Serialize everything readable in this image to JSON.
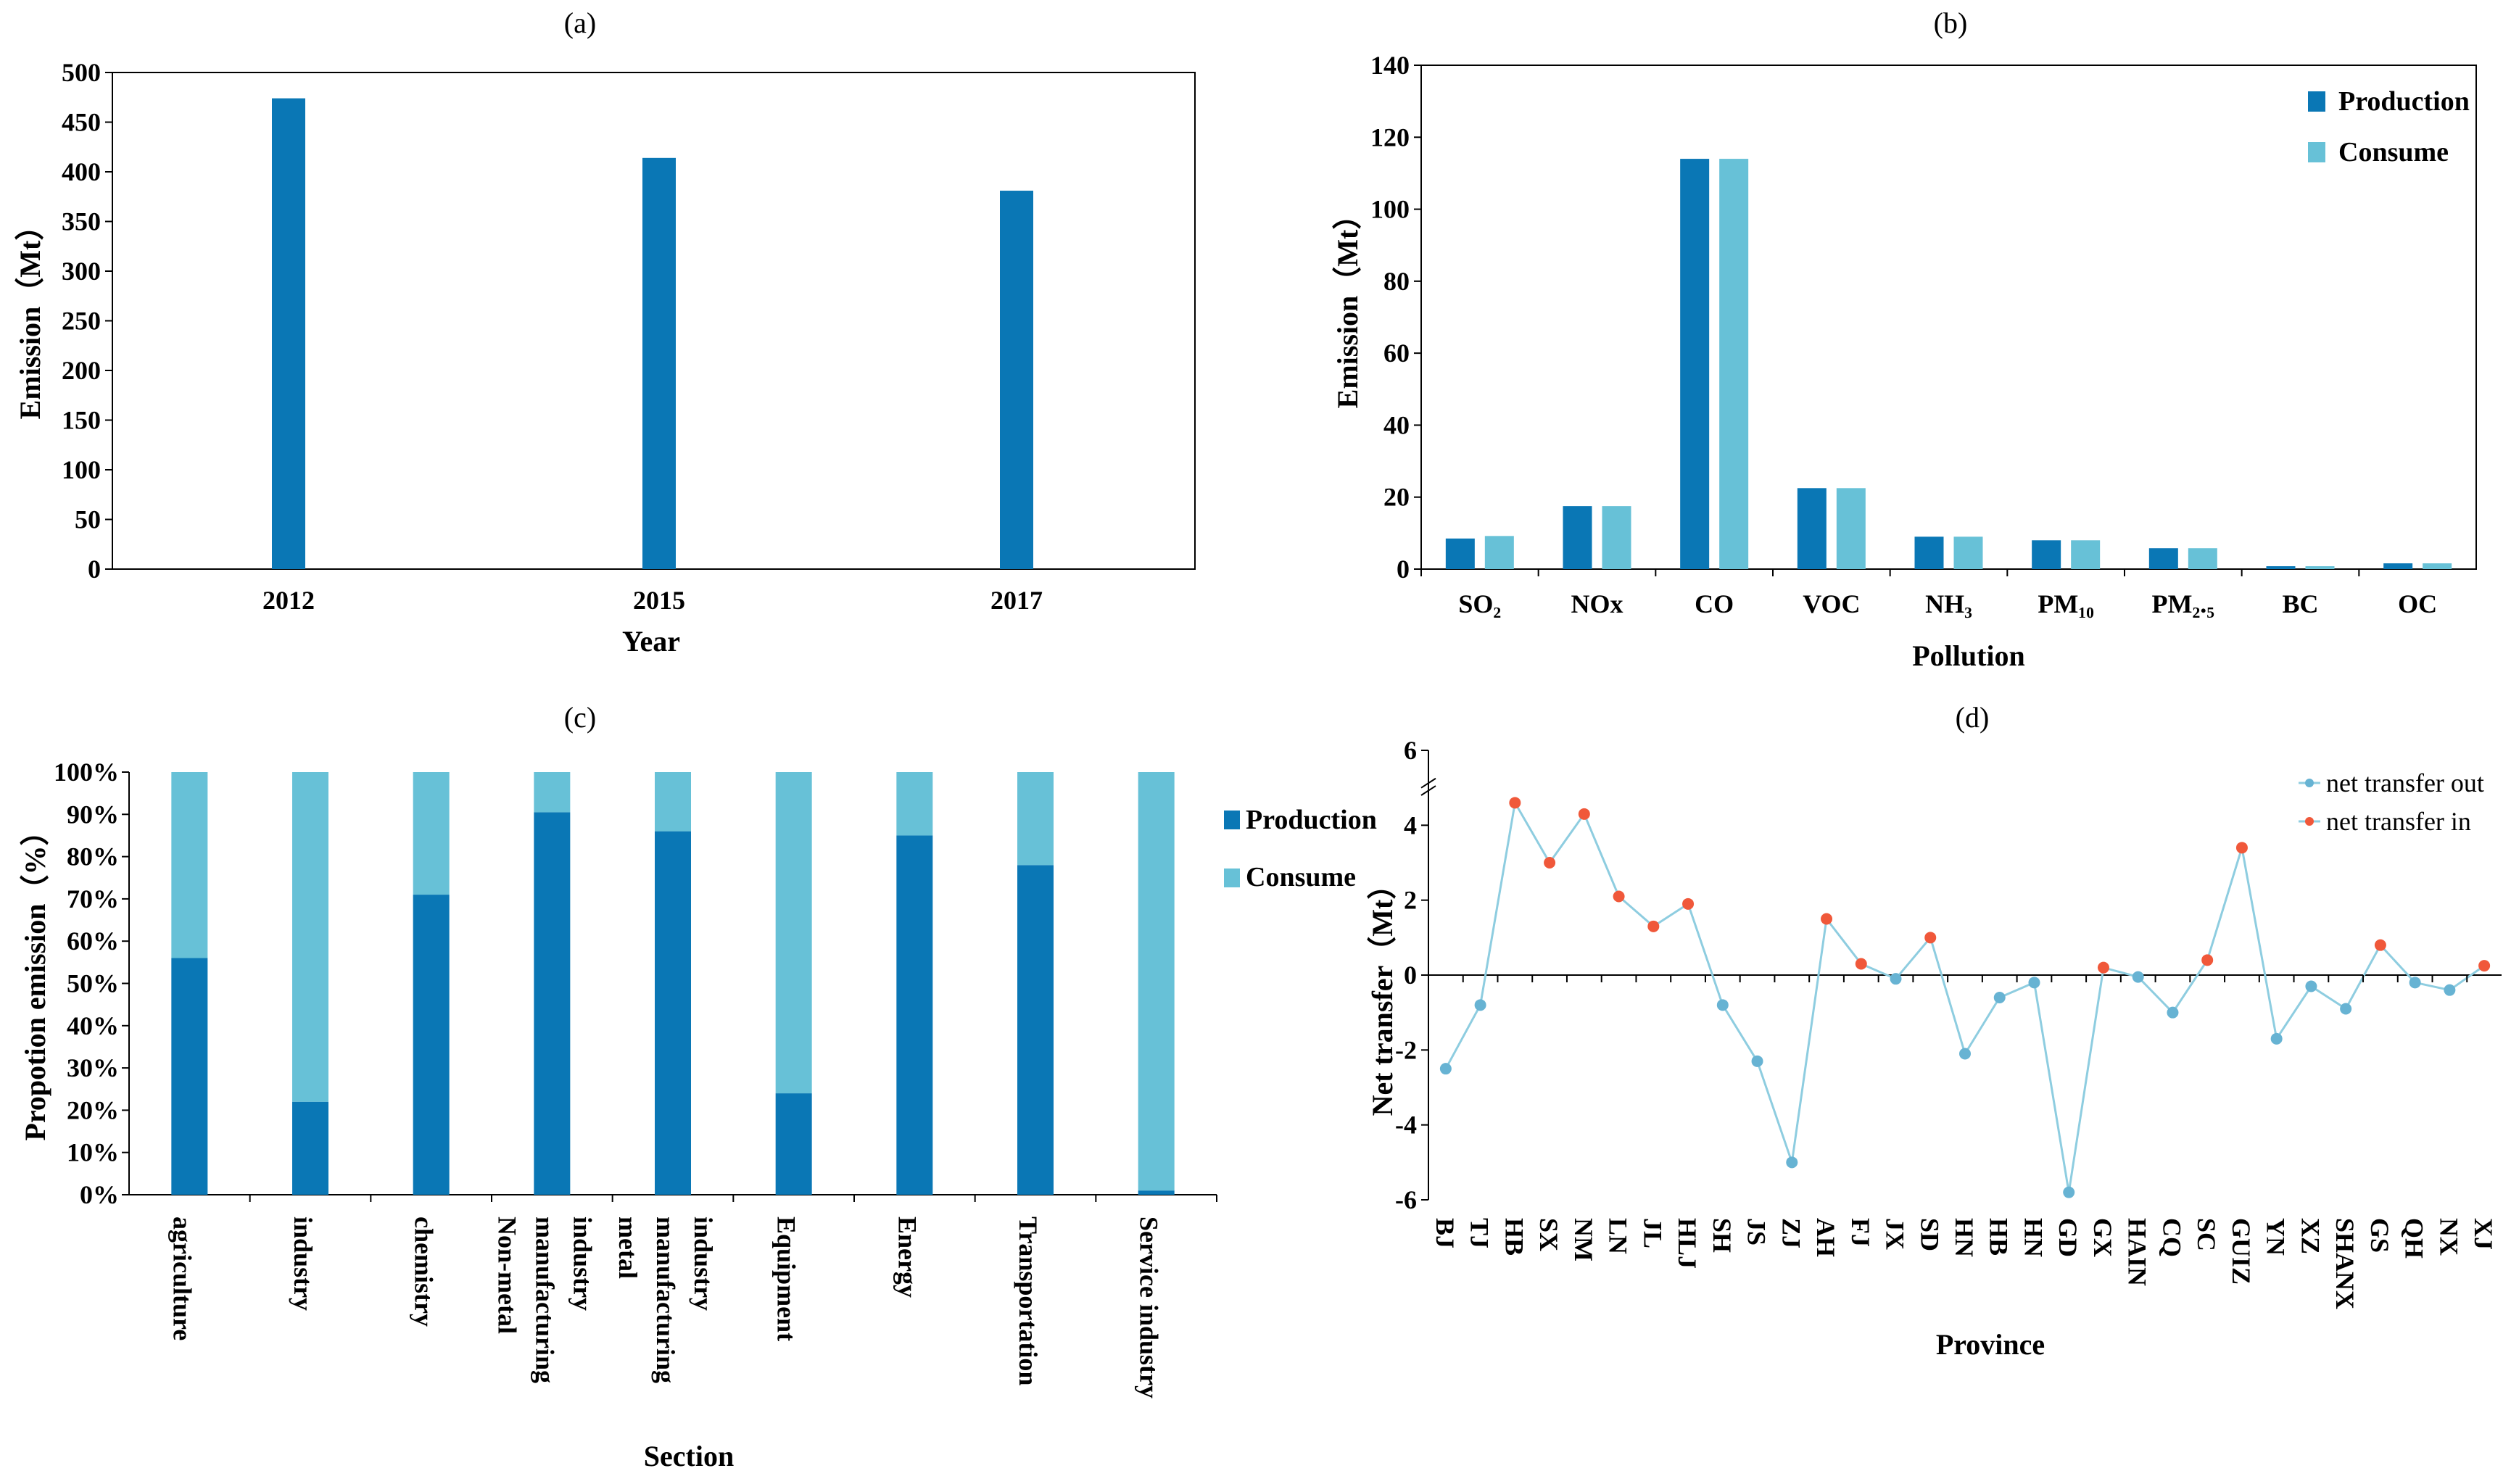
{
  "colors": {
    "production": "#0a77b5",
    "consume": "#67c1d7",
    "net_out": "#67b3d3",
    "net_in": "#f0583a",
    "line": "#8ecde0"
  },
  "chart_data": [
    {
      "id": "a",
      "type": "bar",
      "title": "(a)",
      "categories": [
        "2012",
        "2015",
        "2017"
      ],
      "values": [
        474,
        414,
        381
      ],
      "xlabel": "Year",
      "ylabel": "Emission（Mt）",
      "ylim": [
        0,
        500
      ],
      "yticks": [
        "0",
        "50",
        "100",
        "150",
        "200",
        "250",
        "300",
        "350",
        "400",
        "450",
        "500"
      ]
    },
    {
      "id": "b",
      "type": "bar",
      "title": "(b)",
      "categories": [
        "SO₂",
        "NOx",
        "CO",
        "VOC",
        "NH₃",
        "PM₁₀",
        "PM₂.₅",
        "BC",
        "OC"
      ],
      "series": [
        {
          "name": "Production",
          "values": [
            8.5,
            17.5,
            114,
            22.5,
            9,
            8,
            5.8,
            0.8,
            1.6
          ]
        },
        {
          "name": "Consume",
          "values": [
            9.2,
            17.5,
            114,
            22.5,
            9,
            8,
            5.8,
            0.8,
            1.6
          ]
        }
      ],
      "xlabel": "Pollution",
      "ylabel": "Emission（Mt）",
      "ylim": [
        0,
        140
      ],
      "yticks": [
        "0",
        "20",
        "40",
        "60",
        "80",
        "100",
        "120",
        "140"
      ]
    },
    {
      "id": "c",
      "type": "bar",
      "stacked": true,
      "title": "(c)",
      "categories": [
        "agriculture",
        "industry",
        "chemistry",
        "Non-metal manufacturing industry",
        "metal manufacturing industry",
        "Equipment",
        "Energy",
        "Transportation",
        "Service industry"
      ],
      "category_lines": [
        [
          "agriculture"
        ],
        [
          "industry"
        ],
        [
          "chemistry"
        ],
        [
          "Non-metal",
          "manufacturing",
          "industry"
        ],
        [
          "metal",
          "manufacturing",
          "industry"
        ],
        [
          "Equipment"
        ],
        [
          "Energy"
        ],
        [
          "Transportation"
        ],
        [
          "Service industry"
        ]
      ],
      "series": [
        {
          "name": "Production",
          "values": [
            56,
            22,
            71,
            90.5,
            86,
            24,
            85,
            78,
            1
          ]
        },
        {
          "name": "Consume",
          "values": [
            44,
            78,
            29,
            9.5,
            14,
            76,
            15,
            22,
            99
          ]
        }
      ],
      "xlabel": "Section",
      "ylabel": "Propotion emission（%）",
      "ylim": [
        0,
        100
      ],
      "yticks": [
        "0%",
        "10%",
        "20%",
        "30%",
        "40%",
        "50%",
        "60%",
        "70%",
        "80%",
        "90%",
        "100%"
      ]
    },
    {
      "id": "d",
      "type": "line",
      "title": "(d)",
      "categories": [
        "BJ",
        "TJ",
        "HB",
        "SX",
        "NM",
        "LN",
        "JL",
        "HLJ",
        "SH",
        "JS",
        "ZJ",
        "AH",
        "FJ",
        "JX",
        "SD",
        "HN",
        "HB",
        "HN",
        "GD",
        "GX",
        "HAIN",
        "CQ",
        "SC",
        "GUIZ",
        "YN",
        "XZ",
        "SHANX",
        "GS",
        "QH",
        "NX",
        "XJ"
      ],
      "values": [
        -2.5,
        -0.8,
        4.6,
        3.0,
        4.3,
        2.1,
        1.3,
        1.9,
        -0.8,
        -2.3,
        -5.0,
        1.5,
        0.3,
        -0.1,
        1.0,
        -2.1,
        -0.6,
        -0.2,
        -5.8,
        0.2,
        -0.05,
        -1.0,
        0.4,
        3.4,
        -1.7,
        -0.3,
        -0.9,
        0.8,
        -0.2,
        -0.4,
        0.25
      ],
      "series_names": [
        "net transfer out",
        "net transfer in"
      ],
      "xlabel": "Province",
      "ylabel": "Net transfer（Mt）",
      "ylim": [
        -6,
        6
      ],
      "yticks": [
        "-6",
        "-4",
        "-2",
        "0",
        "2",
        "4",
        "6"
      ]
    }
  ]
}
